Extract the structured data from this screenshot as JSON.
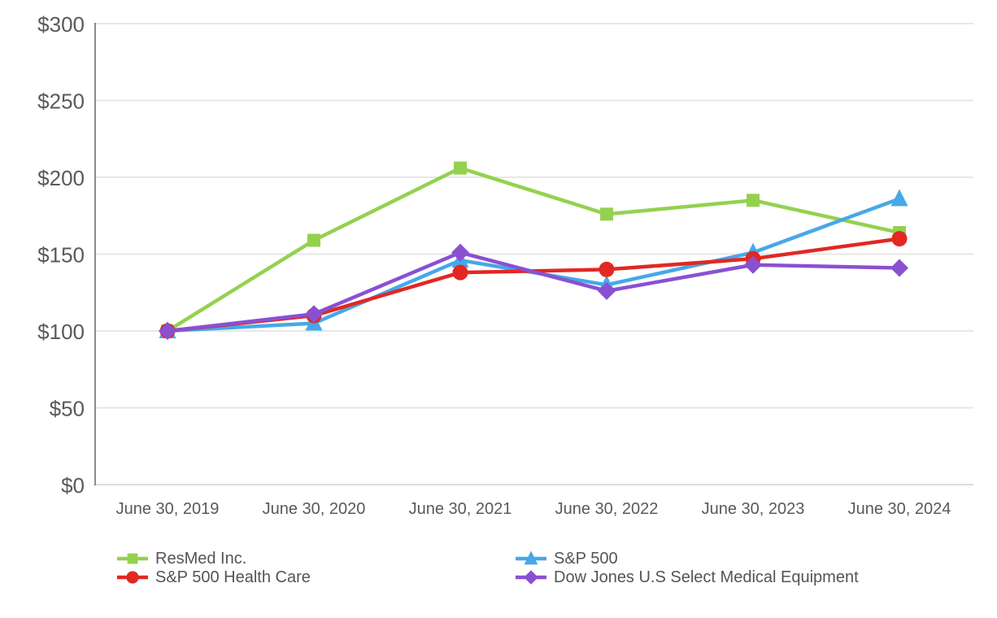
{
  "chart_data": {
    "type": "line",
    "title": "",
    "categories": [
      "June 30, 2019",
      "June 30, 2020",
      "June 30, 2021",
      "June 30, 2022",
      "June 30, 2023",
      "June 30, 2024"
    ],
    "series": [
      {
        "name": "ResMed Inc.",
        "marker": "square",
        "color": "#94D14F",
        "values": [
          100,
          159,
          206,
          176,
          185,
          164
        ]
      },
      {
        "name": "S&P 500",
        "marker": "triangle",
        "color": "#46A8E8",
        "values": [
          100,
          105,
          146,
          130,
          151,
          186
        ]
      },
      {
        "name": "S&P 500 Health Care",
        "marker": "circle",
        "color": "#E12823",
        "values": [
          100,
          110,
          138,
          140,
          147,
          160
        ]
      },
      {
        "name": "Dow Jones U.S Select Medical Equipment",
        "marker": "diamond",
        "color": "#8A50D2",
        "values": [
          100,
          111,
          151,
          126,
          143,
          141
        ]
      }
    ],
    "xlabel": "",
    "ylabel": "",
    "ylim": [
      0,
      300
    ],
    "ytick_values": [
      0,
      50,
      100,
      150,
      200,
      250,
      300
    ],
    "ytick_labels": [
      "$0",
      "$50",
      "$100",
      "$150",
      "$200",
      "$250",
      "$300"
    ],
    "grid": "horizontal",
    "legend_position": "bottom",
    "axis_text_color": "#595959",
    "grid_color": "#E7E7E7",
    "baseline_color": "#DCDCDC",
    "spine_color": "#8C8C8C"
  }
}
